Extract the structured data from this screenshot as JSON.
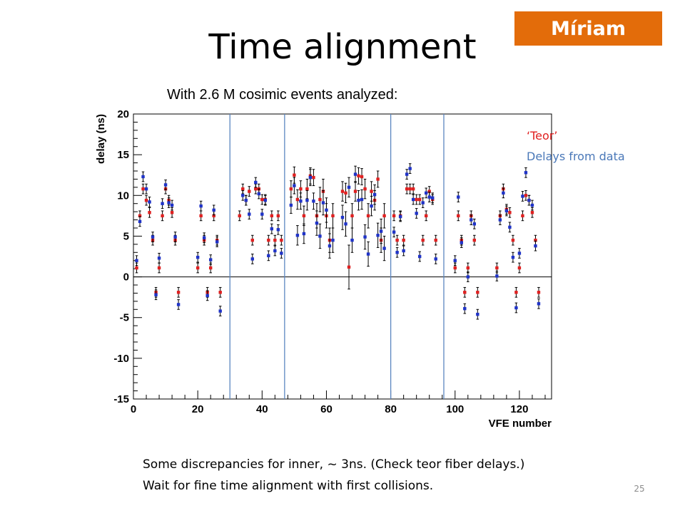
{
  "slide": {
    "title": "Time alignment",
    "badge": "Míriam",
    "subtitle": "With 2.6 M cosimic events analyzed:",
    "notes": [
      "Some discrepancies for inner, ~ 3ns. (Check teor fiber delays.)",
      "Wait for fine time alignment with first collisions."
    ],
    "page_number": "25"
  },
  "legend": {
    "teor_label": "‘Teor’",
    "data_label": "Delays from data"
  },
  "colors": {
    "teor": "#e02020",
    "data": "#1f33c8",
    "partition_lines": "#5b86c0",
    "badge": "#e36c0a"
  },
  "chart_data": {
    "type": "scatter",
    "xlabel": "VFE number",
    "ylabel": "delay (ns)",
    "xlim": [
      0,
      130
    ],
    "ylim": [
      -15,
      20
    ],
    "xticks": [
      0,
      20,
      40,
      60,
      80,
      100,
      120
    ],
    "yticks": [
      -15,
      -10,
      -5,
      0,
      5,
      10,
      15,
      20
    ],
    "reference_line_y": 0,
    "partition_lines_x": [
      30,
      47,
      80,
      96.5
    ],
    "series": [
      {
        "key": "teor",
        "points": [
          [
            1,
            1.1,
            0.6
          ],
          [
            2,
            7.5,
            0.6
          ],
          [
            3,
            10.8,
            0.6
          ],
          [
            4,
            9.4,
            0.6
          ],
          [
            5,
            7.9,
            0.6
          ],
          [
            6,
            4.5,
            0.6
          ],
          [
            7,
            -1.9,
            0.6
          ],
          [
            8,
            1.1,
            0.6
          ],
          [
            9,
            7.5,
            0.6
          ],
          [
            10,
            10.8,
            0.6
          ],
          [
            11,
            9.4,
            0.6
          ],
          [
            12,
            7.9,
            0.6
          ],
          [
            13,
            4.5,
            0.6
          ],
          [
            14,
            -1.9,
            0.6
          ],
          [
            20,
            1.1,
            0.6
          ],
          [
            21,
            7.5,
            0.6
          ],
          [
            22,
            4.5,
            0.6
          ],
          [
            23,
            -1.9,
            0.6
          ],
          [
            24,
            1.1,
            0.6
          ],
          [
            25,
            7.5,
            0.6
          ],
          [
            26,
            4.5,
            0.6
          ],
          [
            27,
            -1.9,
            0.6
          ],
          [
            33,
            7.5,
            0.6
          ],
          [
            34,
            10.8,
            0.6
          ],
          [
            35,
            9.4,
            0.6
          ],
          [
            36,
            10.5,
            0.6
          ],
          [
            37,
            4.5,
            0.6
          ],
          [
            38,
            10.8,
            0.6
          ],
          [
            39,
            10.8,
            0.6
          ],
          [
            40,
            9.5,
            0.6
          ],
          [
            41,
            9.5,
            0.6
          ],
          [
            42,
            4.5,
            0.6
          ],
          [
            43,
            7.5,
            0.6
          ],
          [
            44,
            4.5,
            0.6
          ],
          [
            45,
            7.5,
            0.6
          ],
          [
            46,
            4.5,
            0.6
          ],
          [
            49,
            10.8,
            1
          ],
          [
            50,
            12.5,
            1
          ],
          [
            51,
            9.5,
            1.2
          ],
          [
            52,
            10.8,
            1
          ],
          [
            53,
            7.5,
            1.2
          ],
          [
            54,
            10.8,
            1.2
          ],
          [
            55,
            12.4,
            1
          ],
          [
            56,
            12.2,
            1
          ],
          [
            57,
            7.5,
            1.5
          ],
          [
            58,
            9.5,
            1.5
          ],
          [
            59,
            10.5,
            1.5
          ],
          [
            60,
            7.5,
            1.5
          ],
          [
            61,
            4.5,
            1.5
          ],
          [
            62,
            7.5,
            1.5
          ],
          [
            65,
            10.5,
            1.2
          ],
          [
            66,
            10.3,
            1.2
          ],
          [
            67,
            1.2,
            2.7
          ],
          [
            68,
            7.5,
            1.5
          ],
          [
            69,
            10.5,
            1.2
          ],
          [
            70,
            12.4,
            1
          ],
          [
            71,
            12.3,
            1
          ],
          [
            72,
            10.8,
            1.2
          ],
          [
            73,
            7.5,
            1.5
          ],
          [
            74,
            10.5,
            1.2
          ],
          [
            75,
            9.4,
            1.2
          ],
          [
            76,
            12.0,
            1
          ],
          [
            77,
            4.5,
            1.5
          ],
          [
            78,
            7.5,
            1.5
          ],
          [
            81,
            7.5,
            0.6
          ],
          [
            82,
            4.5,
            0.6
          ],
          [
            83,
            7.5,
            0.6
          ],
          [
            84,
            4.5,
            0.6
          ],
          [
            85,
            10.8,
            0.6
          ],
          [
            86,
            10.8,
            0.6
          ],
          [
            87,
            10.8,
            0.6
          ],
          [
            88,
            9.5,
            0.6
          ],
          [
            89,
            9.5,
            0.6
          ],
          [
            90,
            4.5,
            0.6
          ],
          [
            91,
            7.5,
            0.6
          ],
          [
            92,
            10.5,
            0.6
          ],
          [
            93,
            9.5,
            0.6
          ],
          [
            94,
            4.5,
            0.6
          ],
          [
            100,
            1.1,
            0.6
          ],
          [
            101,
            7.5,
            0.6
          ],
          [
            102,
            4.5,
            0.6
          ],
          [
            103,
            -1.9,
            0.6
          ],
          [
            104,
            1.1,
            0.6
          ],
          [
            105,
            7.5,
            0.6
          ],
          [
            106,
            4.5,
            0.6
          ],
          [
            107,
            -1.9,
            0.6
          ],
          [
            113,
            1.1,
            0.6
          ],
          [
            114,
            7.5,
            0.6
          ],
          [
            115,
            10.8,
            0.6
          ],
          [
            116,
            8.3,
            0.6
          ],
          [
            117,
            7.9,
            0.6
          ],
          [
            118,
            4.5,
            0.6
          ],
          [
            119,
            -1.9,
            0.6
          ],
          [
            120,
            1.1,
            0.6
          ],
          [
            121,
            7.5,
            0.6
          ],
          [
            122,
            10.0,
            0.6
          ],
          [
            123,
            9.4,
            0.6
          ],
          [
            124,
            7.9,
            0.6
          ],
          [
            125,
            4.5,
            0.6
          ],
          [
            126,
            -1.9,
            0.6
          ]
        ]
      },
      {
        "key": "data",
        "points": [
          [
            1,
            2.0,
            0.6
          ],
          [
            2,
            6.8,
            0.6
          ],
          [
            3,
            12.3,
            0.6
          ],
          [
            4,
            10.8,
            0.6
          ],
          [
            5,
            9.2,
            0.6
          ],
          [
            6,
            4.9,
            0.6
          ],
          [
            7,
            -2.2,
            0.6
          ],
          [
            8,
            2.3,
            0.6
          ],
          [
            9,
            9.0,
            0.6
          ],
          [
            10,
            11.3,
            0.6
          ],
          [
            11,
            9.1,
            0.6
          ],
          [
            12,
            8.8,
            0.6
          ],
          [
            13,
            4.9,
            0.6
          ],
          [
            14,
            -3.4,
            0.6
          ],
          [
            20,
            2.4,
            0.6
          ],
          [
            21,
            8.7,
            0.6
          ],
          [
            22,
            4.8,
            0.6
          ],
          [
            23,
            -2.3,
            0.6
          ],
          [
            24,
            2.1,
            0.6
          ],
          [
            25,
            8.2,
            0.6
          ],
          [
            26,
            4.3,
            0.6
          ],
          [
            27,
            -4.2,
            0.6
          ],
          [
            34,
            10.0,
            0.6
          ],
          [
            35,
            9.4,
            0.6
          ],
          [
            36,
            7.7,
            0.6
          ],
          [
            37,
            2.2,
            0.6
          ],
          [
            38,
            11.6,
            0.6
          ],
          [
            39,
            10.2,
            0.6
          ],
          [
            40,
            7.7,
            0.6
          ],
          [
            41,
            9.4,
            0.6
          ],
          [
            42,
            2.6,
            0.6
          ],
          [
            43,
            5.9,
            0.6
          ],
          [
            44,
            3.2,
            0.6
          ],
          [
            45,
            5.8,
            0.6
          ],
          [
            46,
            2.9,
            0.6
          ],
          [
            49,
            8.8,
            1
          ],
          [
            50,
            11.2,
            1
          ],
          [
            51,
            5.1,
            1.2
          ],
          [
            52,
            9.3,
            1
          ],
          [
            53,
            5.3,
            1.2
          ],
          [
            54,
            9.4,
            1.2
          ],
          [
            55,
            12.2,
            1
          ],
          [
            56,
            9.3,
            1
          ],
          [
            57,
            6.6,
            1.5
          ],
          [
            58,
            5.0,
            1.5
          ],
          [
            59,
            9.1,
            1.5
          ],
          [
            60,
            8.2,
            1.5
          ],
          [
            61,
            3.8,
            1.5
          ],
          [
            62,
            4.5,
            1.5
          ],
          [
            65,
            7.3,
            1.5
          ],
          [
            66,
            6.5,
            1.5
          ],
          [
            67,
            11.0,
            1.2
          ],
          [
            68,
            4.5,
            1.5
          ],
          [
            69,
            12.6,
            1
          ],
          [
            70,
            9.4,
            1.2
          ],
          [
            71,
            9.5,
            1.2
          ],
          [
            72,
            4.9,
            1.5
          ],
          [
            73,
            2.8,
            1.5
          ],
          [
            74,
            8.7,
            1.2
          ],
          [
            75,
            10.1,
            1.2
          ],
          [
            76,
            5.1,
            1.5
          ],
          [
            77,
            5.6,
            1.5
          ],
          [
            78,
            3.5,
            1.5
          ],
          [
            81,
            5.5,
            0.6
          ],
          [
            82,
            3.0,
            0.6
          ],
          [
            83,
            7.4,
            0.6
          ],
          [
            84,
            3.2,
            0.6
          ],
          [
            85,
            12.6,
            0.6
          ],
          [
            86,
            13.3,
            0.6
          ],
          [
            87,
            9.5,
            0.6
          ],
          [
            88,
            7.8,
            0.6
          ],
          [
            89,
            2.5,
            0.6
          ],
          [
            90,
            9.1,
            0.6
          ],
          [
            91,
            10.3,
            0.6
          ],
          [
            92,
            9.8,
            0.6
          ],
          [
            93,
            9.7,
            0.6
          ],
          [
            94,
            2.2,
            0.6
          ],
          [
            100,
            2.0,
            0.6
          ],
          [
            101,
            9.8,
            0.6
          ],
          [
            102,
            4.2,
            0.6
          ],
          [
            103,
            -3.9,
            0.6
          ],
          [
            104,
            0.0,
            0.6
          ],
          [
            105,
            7.0,
            0.6
          ],
          [
            106,
            6.5,
            0.6
          ],
          [
            107,
            -4.6,
            0.6
          ],
          [
            113,
            0.1,
            0.6
          ],
          [
            114,
            7.0,
            0.6
          ],
          [
            115,
            10.3,
            0.6
          ],
          [
            116,
            8.1,
            0.6
          ],
          [
            117,
            6.1,
            0.6
          ],
          [
            118,
            2.4,
            0.6
          ],
          [
            119,
            -3.8,
            0.6
          ],
          [
            120,
            2.9,
            0.6
          ],
          [
            121,
            9.9,
            0.6
          ],
          [
            122,
            12.8,
            0.6
          ],
          [
            123,
            9.4,
            0.6
          ],
          [
            124,
            8.8,
            0.6
          ],
          [
            125,
            3.8,
            0.6
          ],
          [
            126,
            -3.3,
            0.6
          ]
        ]
      }
    ]
  }
}
